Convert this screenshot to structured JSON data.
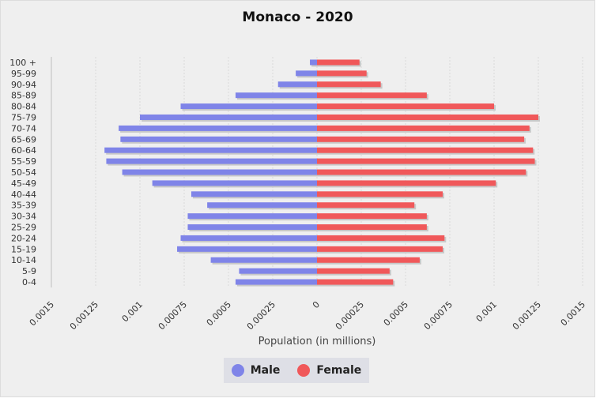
{
  "chart_data": {
    "type": "bar",
    "orientation": "horizontal-population-pyramid",
    "title": "Monaco - 2020",
    "xlabel": "Population (in millions)",
    "ylabel": "",
    "xlim": [
      -0.0015,
      0.0015
    ],
    "x_ticks": [
      "0.0015",
      "0.00125",
      "0.001",
      "0.00075",
      "0.0005",
      "0.00025",
      "0",
      "0.00025",
      "0.0005",
      "0.00075",
      "0.001",
      "0.00125",
      "0.0015"
    ],
    "categories": [
      "100 +",
      "95-99",
      "90-94",
      "85-89",
      "80-84",
      "75-79",
      "70-74",
      "65-69",
      "60-64",
      "55-59",
      "50-54",
      "45-49",
      "40-44",
      "35-39",
      "30-34",
      "25-29",
      "20-24",
      "15-19",
      "10-14",
      "5-9",
      "0-4"
    ],
    "series": [
      {
        "name": "Male",
        "color": "#7f84e8",
        "values": [
          4e-05,
          0.00012,
          0.00022,
          0.00046,
          0.00077,
          0.001,
          0.00112,
          0.00111,
          0.0012,
          0.00119,
          0.0011,
          0.00093,
          0.00071,
          0.00062,
          0.00073,
          0.00073,
          0.00077,
          0.00079,
          0.0006,
          0.00044,
          0.00046
        ]
      },
      {
        "name": "Female",
        "color": "#f0585a",
        "values": [
          0.00024,
          0.00028,
          0.00036,
          0.00062,
          0.001,
          0.00125,
          0.0012,
          0.00117,
          0.00122,
          0.00123,
          0.00118,
          0.00101,
          0.00071,
          0.00055,
          0.00062,
          0.00062,
          0.00072,
          0.00071,
          0.00058,
          0.00041,
          0.00043
        ]
      }
    ],
    "grid": true,
    "legend_position": "bottom-center"
  }
}
